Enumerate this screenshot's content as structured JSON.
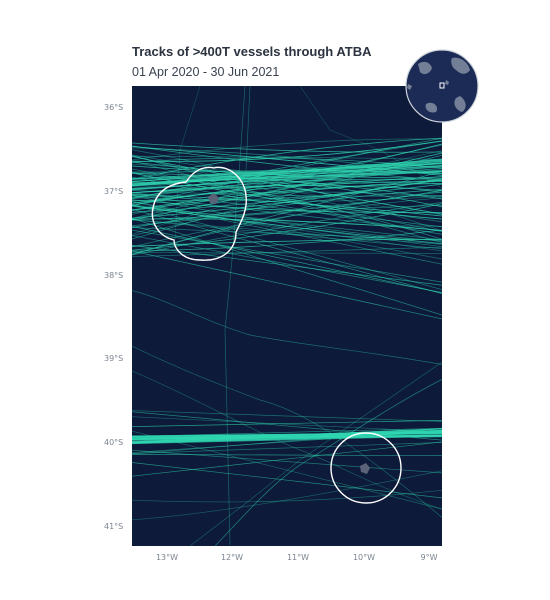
{
  "map": {
    "title": "Tracks of >400T vessels through ATBA",
    "subtitle": "01 Apr 2020 - 30 Jun 2021",
    "lat_ticks": [
      "36°S",
      "37°S",
      "38°S",
      "39°S",
      "40°S",
      "41°S"
    ],
    "lon_ticks": [
      "13°W",
      "12°W",
      "11°W",
      "10°W",
      "9°W"
    ],
    "extent": {
      "lon": [
        -13.5,
        -9.2
      ],
      "lat": [
        -41.2,
        -35.7
      ]
    },
    "islands": [
      {
        "name_hidden": "north-island",
        "lon": -12.3,
        "lat": -37.1
      },
      {
        "name_hidden": "south-island",
        "lon": -9.9,
        "lat": -40.3
      }
    ],
    "colors": {
      "ocean": "#0d1a3a",
      "track": "#2fd6b0",
      "atba_boundary": "#ffffff",
      "island": "#5a6377",
      "title": "#2b3340"
    }
  }
}
